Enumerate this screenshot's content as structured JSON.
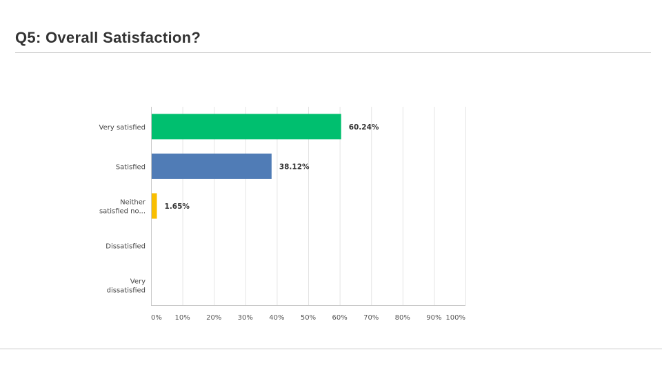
{
  "slide": {
    "title": "Q5: Overall Satisfaction?"
  },
  "chart_data": {
    "type": "bar",
    "orientation": "horizontal",
    "title": "",
    "xlabel": "",
    "ylabel": "",
    "categories": [
      [
        "Very satisfied"
      ],
      [
        "Satisfied"
      ],
      [
        "Neither",
        "satisfied no..."
      ],
      [
        "Dissatisfied"
      ],
      [
        "Very",
        "dissatisfied"
      ]
    ],
    "values": [
      60.24,
      38.12,
      1.65,
      0,
      0
    ],
    "value_labels": [
      "60.24%",
      "38.12%",
      "1.65%",
      "",
      ""
    ],
    "bar_colors": [
      "#00BF6F",
      "#507CB6",
      "#F9BE00",
      "#6BC8CD",
      "#8B9DC3"
    ],
    "xlim": [
      0,
      100
    ],
    "xticks": [
      0,
      10,
      20,
      30,
      40,
      50,
      60,
      70,
      80,
      90,
      100
    ],
    "xtick_labels": [
      "0%",
      "10%",
      "20%",
      "30%",
      "40%",
      "50%",
      "60%",
      "70%",
      "80%",
      "90%",
      "100%"
    ],
    "grid": true,
    "legend": "none"
  }
}
